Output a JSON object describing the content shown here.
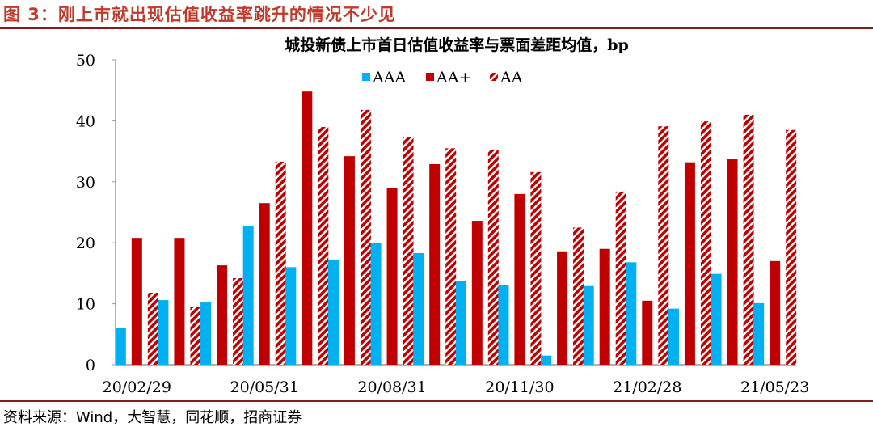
{
  "figure_title": "图 3：刚上市就出现估值收益率跳升的情况不少见",
  "source": "资料来源：Wind，大智慧，同花顺，招商证券",
  "colors": {
    "AAA": "#00b0f0",
    "AA+": "#c00000",
    "AA": "#c00000",
    "rule": "#8b1a1a",
    "title": "#c0392b"
  },
  "chart_data": {
    "type": "bar",
    "title": "城投新债上市首日估值收益率与票面差距均值，bp",
    "ylim": [
      0,
      50
    ],
    "yticks": [
      0,
      10,
      20,
      30,
      40,
      50
    ],
    "x_tick_labels": [
      "20/02/29",
      "20/05/31",
      "20/08/31",
      "20/11/30",
      "21/02/28",
      "21/05/23"
    ],
    "legend_position": "top-center",
    "grid": false,
    "series": [
      {
        "name": "AAA",
        "pattern": "solid",
        "values": [
          6.0,
          10.6,
          10.2,
          22.8,
          16.0,
          17.2,
          20.0,
          18.3,
          13.7,
          13.1,
          1.5,
          12.9,
          16.8,
          9.2,
          14.9,
          10.1
        ]
      },
      {
        "name": "AA+",
        "pattern": "solid",
        "values": [
          20.8,
          20.8,
          16.3,
          26.5,
          44.8,
          34.2,
          29.0,
          32.9,
          23.6,
          28.0,
          18.6,
          19.0,
          10.5,
          33.2,
          33.7,
          17.0
        ]
      },
      {
        "name": "AA",
        "pattern": "diagonal-hatch",
        "values": [
          11.8,
          9.5,
          14.2,
          33.3,
          39.0,
          41.8,
          37.3,
          35.5,
          35.3,
          31.6,
          22.5,
          28.4,
          39.1,
          39.9,
          41.0,
          38.5
        ]
      }
    ]
  }
}
